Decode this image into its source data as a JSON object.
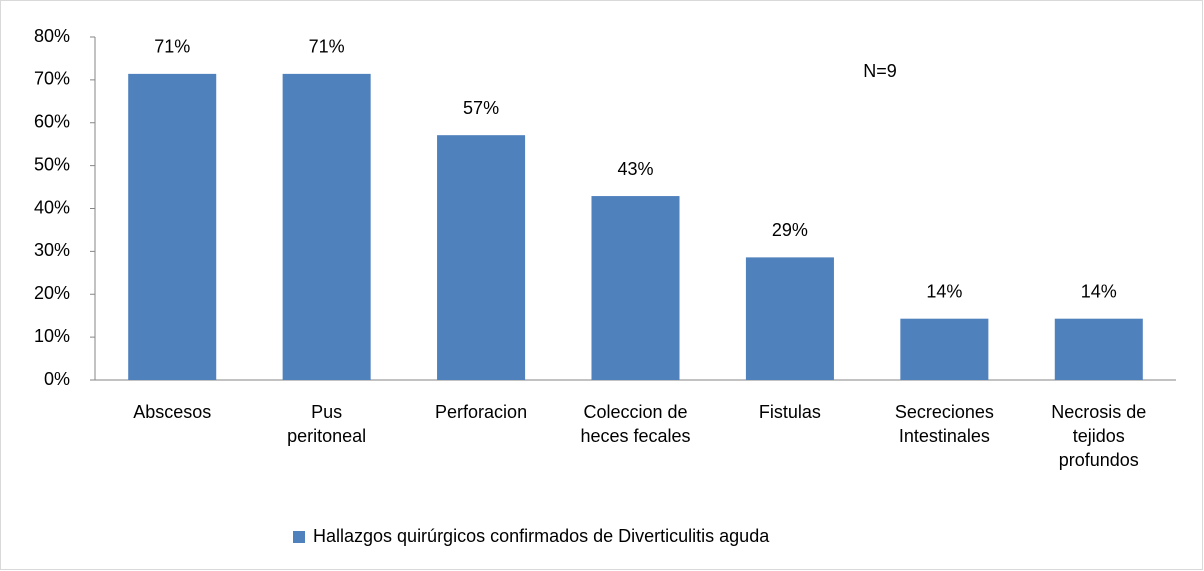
{
  "chart_data": {
    "type": "bar",
    "categories": [
      "Abscesos",
      "Pus\nperitoneal",
      "Perforacion",
      "Coleccion de\nheces fecales",
      "Fistulas",
      "Secreciones\nIntestinales",
      "Necrosis de\ntejidos\nprofundos"
    ],
    "series": [
      {
        "name": "Hallazgos quirúrgicos confirmados de Diverticulitis aguda",
        "color": "#4f81bd",
        "values": [
          71.4,
          71.4,
          57.1,
          42.9,
          28.6,
          14.3,
          14.3
        ],
        "value_labels": [
          "71%",
          "71%",
          "57%",
          "43%",
          "29%",
          "14%",
          "14%"
        ]
      }
    ],
    "ylim": [
      0,
      80
    ],
    "yticks": [
      {
        "value": 0,
        "label": "0%"
      },
      {
        "value": 10,
        "label": "10%"
      },
      {
        "value": 20,
        "label": "20%"
      },
      {
        "value": 30,
        "label": "30%"
      },
      {
        "value": 40,
        "label": "40%"
      },
      {
        "value": 50,
        "label": "50%"
      },
      {
        "value": 60,
        "label": "60%"
      },
      {
        "value": 70,
        "label": "70%"
      },
      {
        "value": 80,
        "label": "80%"
      }
    ],
    "annotation": "N=9",
    "grid": false,
    "legend": "bottom"
  }
}
